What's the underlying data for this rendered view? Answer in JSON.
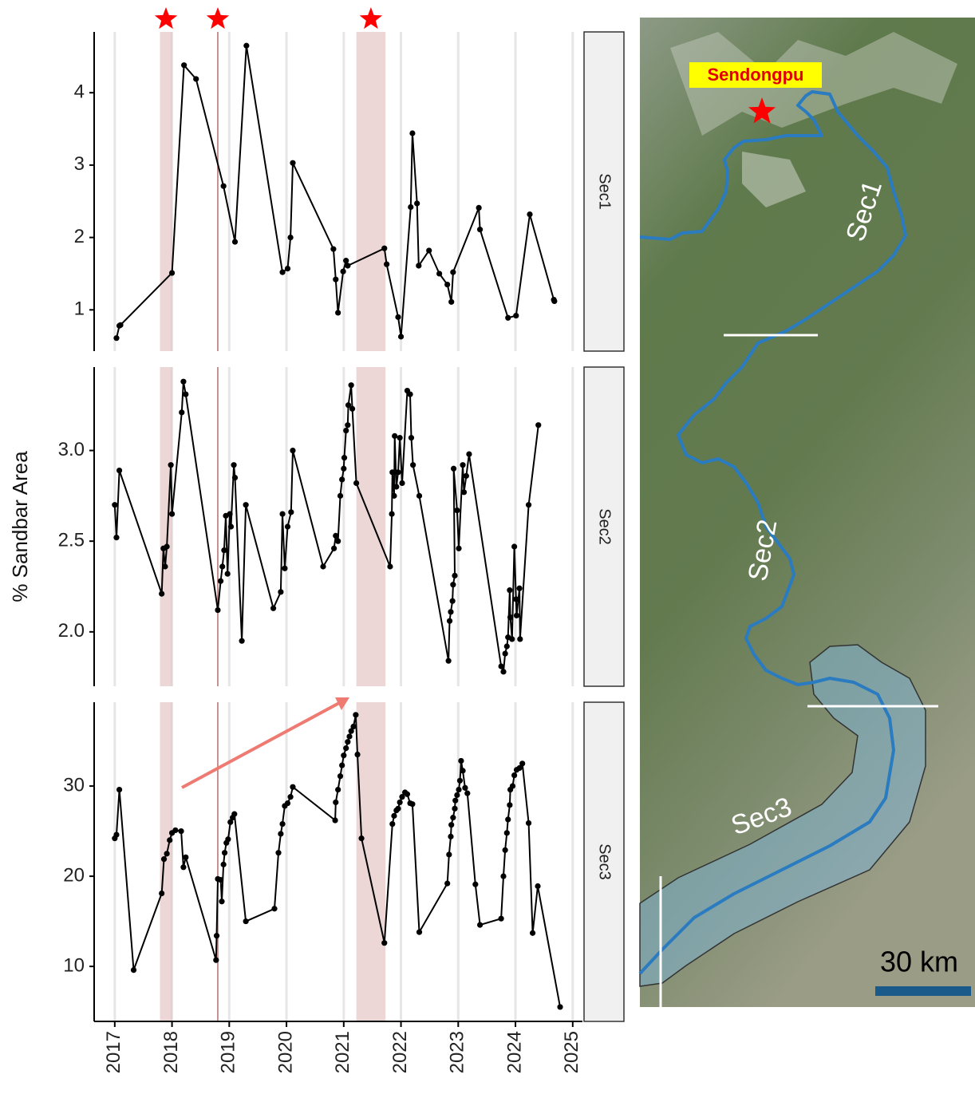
{
  "chart_data": [
    {
      "type": "line",
      "facet": "Sec1",
      "color": "#000000",
      "x": [
        2017.03,
        2017.08,
        2017.1,
        2018.0,
        2018.21,
        2018.42,
        2018.9,
        2019.1,
        2019.3,
        2019.93,
        2020.02,
        2020.07,
        2020.11,
        2020.82,
        2020.86,
        2020.9,
        2020.99,
        2021.04,
        2021.07,
        2021.71,
        2021.75,
        2021.95,
        2022.0,
        2022.17,
        2022.2,
        2022.28,
        2022.31,
        2022.49,
        2022.67,
        2022.81,
        2022.88,
        2022.91,
        2023.36,
        2023.38,
        2023.87,
        2024.01,
        2024.25,
        2024.67,
        2024.68
      ],
      "values": [
        0.61,
        0.78,
        0.79,
        1.51,
        4.38,
        4.19,
        2.71,
        1.94,
        4.65,
        1.52,
        1.57,
        2.0,
        3.03,
        1.84,
        1.42,
        0.96,
        1.53,
        1.68,
        1.61,
        1.85,
        1.63,
        0.9,
        0.63,
        2.42,
        3.44,
        2.47,
        1.61,
        1.82,
        1.5,
        1.35,
        1.11,
        1.52,
        2.41,
        2.11,
        0.89,
        0.92,
        2.32,
        1.14,
        1.12
      ],
      "xlim": [
        2016.64,
        2025.17
      ],
      "ylim": [
        0.43,
        4.84
      ],
      "yticks": [
        1,
        2,
        3,
        4
      ],
      "xticks": [
        2017,
        2018,
        2019,
        2020,
        2021,
        2022,
        2023,
        2024,
        2025
      ]
    },
    {
      "type": "line",
      "facet": "Sec2",
      "color": "#000000",
      "ylabel": "% Sandbar Area",
      "x": [
        2017.0,
        2017.03,
        2017.08,
        2017.82,
        2017.85,
        2017.88,
        2017.91,
        2017.98,
        2018.0,
        2018.17,
        2018.2,
        2018.24,
        2018.8,
        2018.85,
        2018.88,
        2018.91,
        2018.94,
        2018.97,
        2019.01,
        2019.03,
        2019.08,
        2019.1,
        2019.22,
        2019.29,
        2019.77,
        2019.9,
        2019.93,
        2019.97,
        2020.02,
        2020.08,
        2020.11,
        2020.64,
        2020.83,
        2020.86,
        2020.9,
        2020.94,
        2020.97,
        2021.0,
        2021.01,
        2021.04,
        2021.07,
        2021.08,
        2021.13,
        2021.15,
        2021.22,
        2021.81,
        2021.84,
        2021.85,
        2021.88,
        2021.89,
        2021.92,
        2021.95,
        2021.98,
        2022.02,
        2022.11,
        2022.16,
        2022.18,
        2022.21,
        2022.32,
        2022.83,
        2022.85,
        2022.87,
        2022.9,
        2022.91,
        2022.94,
        2022.92,
        2022.98,
        2023.01,
        2023.08,
        2023.1,
        2023.14,
        2023.19,
        2023.75,
        2023.79,
        2023.82,
        2023.85,
        2023.87,
        2023.9,
        2023.91,
        2023.94,
        2023.98,
        2024.01,
        2024.02,
        2024.07,
        2024.08,
        2024.23,
        2024.4
      ],
      "values": [
        2.7,
        2.52,
        2.89,
        2.21,
        2.46,
        2.36,
        2.47,
        2.92,
        2.65,
        3.21,
        3.38,
        3.31,
        2.12,
        2.28,
        2.36,
        2.45,
        2.64,
        2.32,
        2.65,
        2.58,
        2.92,
        2.85,
        1.95,
        2.7,
        2.13,
        2.22,
        2.65,
        2.35,
        2.58,
        2.66,
        3.0,
        2.36,
        2.46,
        2.53,
        2.5,
        2.75,
        2.84,
        2.9,
        2.96,
        3.11,
        3.14,
        3.25,
        3.36,
        3.23,
        2.82,
        2.36,
        2.65,
        2.88,
        2.75,
        3.08,
        2.8,
        2.88,
        3.07,
        2.82,
        3.33,
        3.31,
        3.07,
        2.92,
        2.75,
        1.84,
        2.06,
        2.11,
        2.17,
        2.26,
        2.31,
        2.9,
        2.67,
        2.46,
        2.92,
        2.77,
        2.86,
        2.98,
        1.81,
        1.78,
        1.88,
        1.92,
        1.97,
        2.23,
        2.08,
        1.96,
        2.47,
        2.18,
        2.09,
        2.24,
        1.96,
        2.7,
        3.14
      ],
      "xlim": [
        2016.64,
        2025.17
      ],
      "ylim": [
        1.7,
        3.46
      ],
      "yticks": [
        {
          "value": 2,
          "label": "2.0"
        },
        {
          "value": 2.5,
          "label": "2.5"
        },
        {
          "value": 3,
          "label": "3.0"
        }
      ],
      "xticks": [
        2017,
        2018,
        2019,
        2020,
        2021,
        2022,
        2023,
        2024,
        2025
      ]
    },
    {
      "type": "line",
      "facet": "Sec3",
      "color": "#000000",
      "x": [
        2017.0,
        2017.03,
        2017.08,
        2017.33,
        2017.82,
        2017.86,
        2017.91,
        2017.96,
        2018.0,
        2018.06,
        2018.16,
        2018.2,
        2018.24,
        2018.77,
        2018.78,
        2018.8,
        2018.85,
        2018.87,
        2018.9,
        2018.92,
        2018.95,
        2018.98,
        2019.02,
        2019.06,
        2019.09,
        2019.29,
        2019.79,
        2019.86,
        2019.9,
        2019.93,
        2019.97,
        2020.02,
        2020.07,
        2020.11,
        2020.85,
        2020.86,
        2020.9,
        2020.94,
        2020.97,
        2021.0,
        2021.04,
        2021.07,
        2021.1,
        2021.13,
        2021.17,
        2021.21,
        2021.24,
        2021.31,
        2021.71,
        2021.85,
        2021.88,
        2021.92,
        2021.95,
        2021.98,
        2022.02,
        2022.07,
        2022.11,
        2022.16,
        2022.2,
        2022.32,
        2022.81,
        2022.84,
        2022.87,
        2022.88,
        2022.91,
        2022.94,
        2022.95,
        2022.98,
        2023.01,
        2023.03,
        2023.05,
        2023.08,
        2023.12,
        2023.16,
        2023.3,
        2023.38,
        2023.75,
        2023.79,
        2023.82,
        2023.85,
        2023.87,
        2023.9,
        2023.91,
        2023.95,
        2023.98,
        2024.02,
        2024.07,
        2024.12,
        2024.23,
        2024.3,
        2024.39,
        2024.78
      ],
      "values": [
        24.2,
        24.6,
        29.6,
        9.6,
        18.1,
        21.9,
        22.5,
        24.0,
        24.8,
        25.1,
        25.0,
        21.0,
        22.1,
        10.7,
        13.4,
        19.7,
        19.6,
        17.2,
        21.3,
        22.6,
        23.7,
        24.1,
        26.0,
        26.5,
        26.9,
        15.0,
        16.4,
        22.6,
        24.7,
        25.8,
        27.8,
        28.1,
        28.8,
        29.9,
        26.2,
        28.2,
        29.6,
        31.1,
        32.3,
        33.4,
        34.2,
        34.9,
        35.5,
        36.1,
        36.6,
        37.9,
        33.5,
        24.2,
        12.6,
        25.8,
        26.7,
        27.3,
        27.5,
        28.2,
        28.8,
        29.3,
        29.1,
        28.1,
        28.0,
        13.8,
        19.2,
        22.4,
        24.4,
        25.7,
        26.5,
        27.5,
        28.4,
        29.0,
        29.6,
        30.6,
        32.8,
        31.7,
        29.8,
        29.2,
        19.1,
        14.6,
        15.3,
        20.0,
        22.9,
        24.8,
        26.3,
        27.9,
        29.6,
        30.0,
        31.2,
        31.8,
        32.0,
        32.5,
        25.9,
        13.7,
        18.9,
        5.5
      ],
      "xlim": [
        2016.64,
        2025.17
      ],
      "ylim": [
        3.9,
        39.3
      ],
      "yticks": [
        10,
        20,
        30
      ],
      "xticks": [
        2017,
        2018,
        2019,
        2020,
        2021,
        2022,
        2023,
        2024,
        2025
      ]
    }
  ],
  "highlights": {
    "color": "#dcb4b4",
    "ranges": [
      [
        2017.79,
        2018.0
      ],
      [
        2018.8,
        2018.8
      ],
      [
        2021.22,
        2021.73
      ]
    ]
  },
  "map": {
    "site": "Sendongpu",
    "sections": [
      "Sec1",
      "Sec2",
      "Sec3"
    ],
    "scale": "30 km"
  }
}
